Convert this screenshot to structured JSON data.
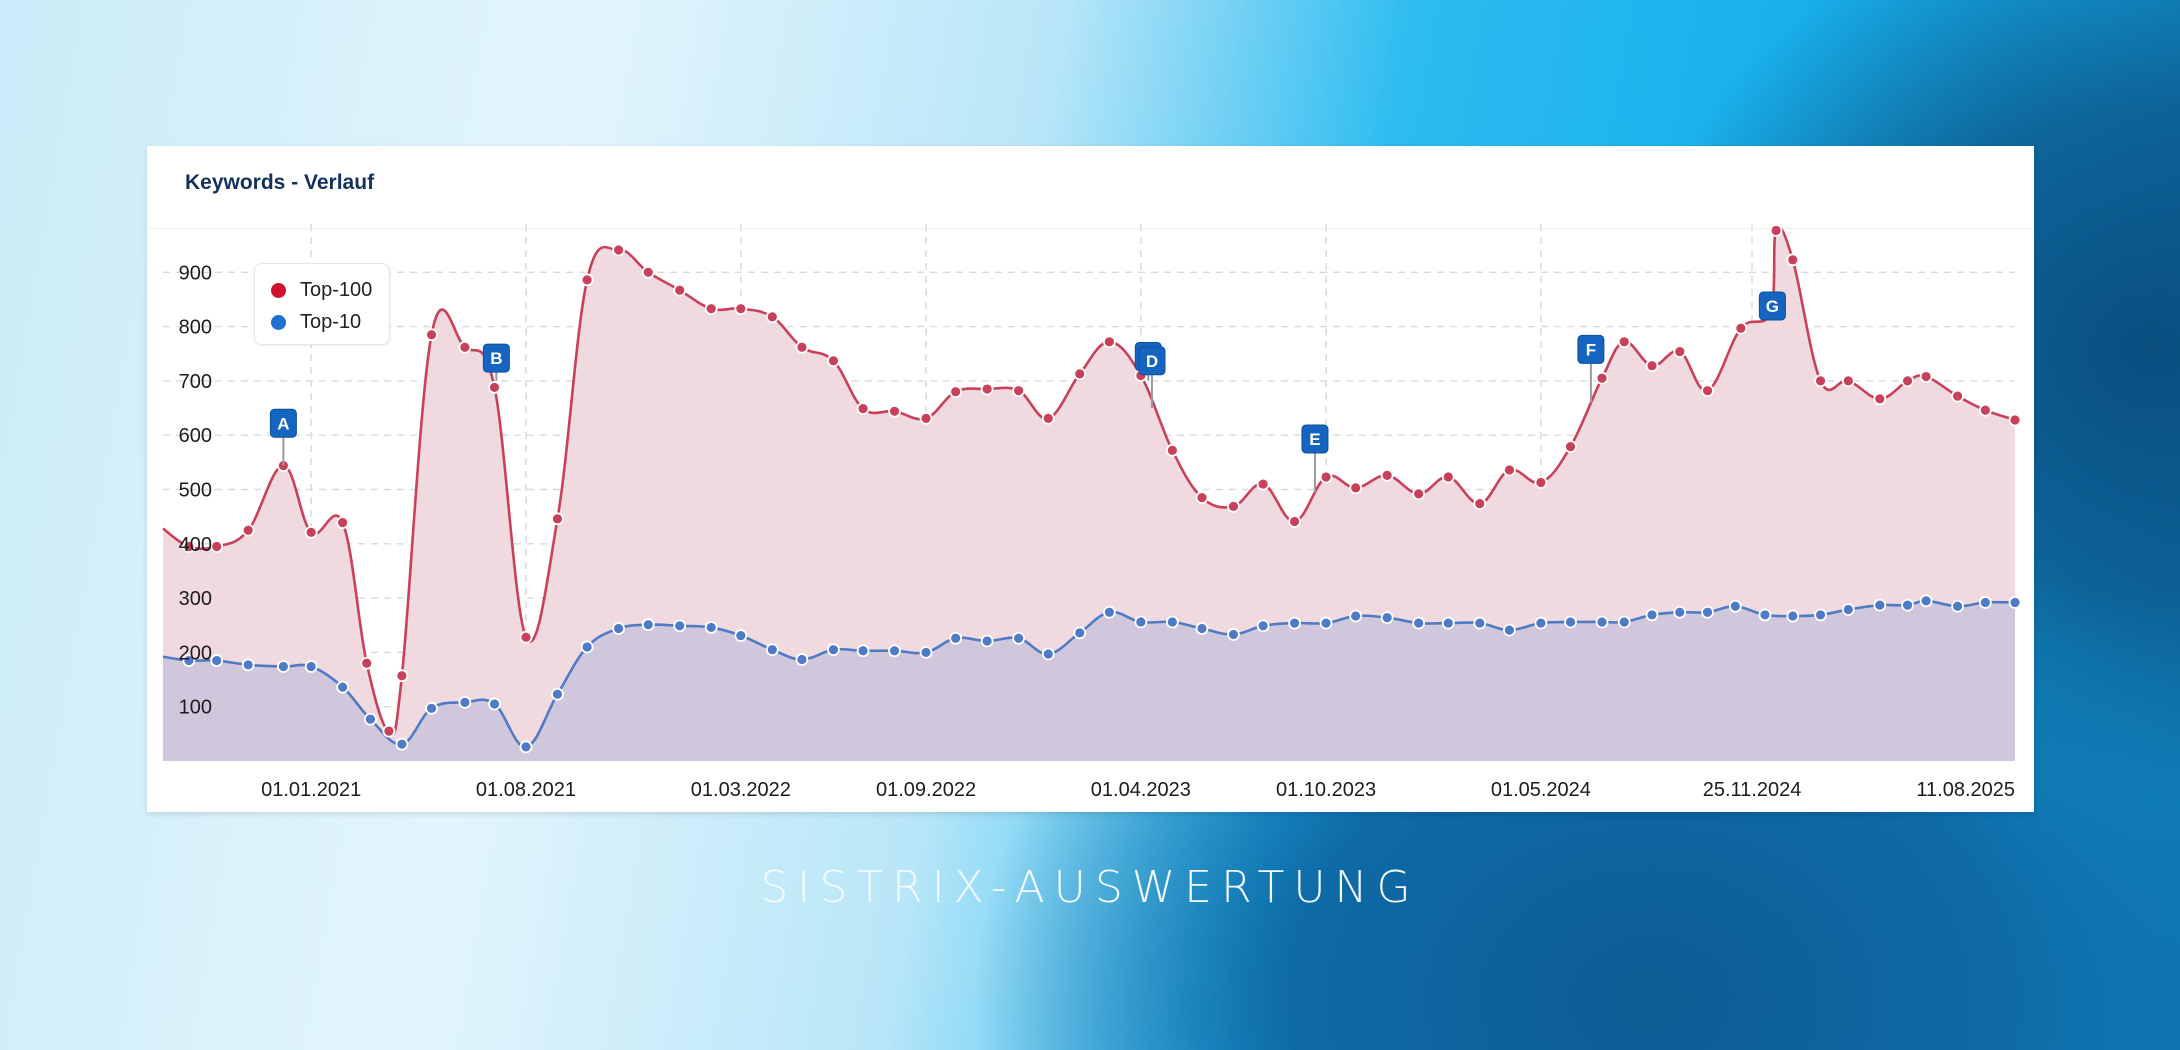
{
  "card": {
    "title": "Keywords - Verlauf"
  },
  "legend": {
    "items": [
      {
        "label": "Top-100",
        "color": "#d0102e"
      },
      {
        "label": "Top-10",
        "color": "#1f6fd1"
      }
    ]
  },
  "caption": "SISTRIX-AUSWERTUNG",
  "colors": {
    "top100_line": "#c9405a",
    "top100_fill": "#f0dadf",
    "top10_line": "#4f7bc6",
    "top10_fill": "#cfc6dc",
    "flag": "#1565c0",
    "grid": "#d9d9d9"
  },
  "chart_data": {
    "type": "area",
    "title": "Keywords - Verlauf",
    "xlabel": "",
    "ylabel": "",
    "ylim": [
      0,
      1000
    ],
    "grid": true,
    "legend_position": "top-left inside",
    "yticks": [
      100,
      200,
      300,
      400,
      500,
      600,
      700,
      800,
      900
    ],
    "xticks": [
      {
        "label": "01.01.2021",
        "pos": 0.08
      },
      {
        "label": "01.08.2021",
        "pos": 0.196
      },
      {
        "label": "01.03.2022",
        "pos": 0.312
      },
      {
        "label": "01.09.2022",
        "pos": 0.412
      },
      {
        "label": "01.04.2023",
        "pos": 0.528
      },
      {
        "label": "01.10.2023",
        "pos": 0.628
      },
      {
        "label": "01.05.2024",
        "pos": 0.744
      },
      {
        "label": "25.11.2024",
        "pos": 0.858
      },
      {
        "label": "11.08.2025",
        "pos": 1.0
      }
    ],
    "series": [
      {
        "name": "Top-100",
        "points": [
          [
            0.0,
            428
          ],
          [
            0.014,
            395
          ],
          [
            0.029,
            395
          ],
          [
            0.046,
            425
          ],
          [
            0.065,
            544
          ],
          [
            0.08,
            421
          ],
          [
            0.097,
            439
          ],
          [
            0.11,
            180
          ],
          [
            0.122,
            55
          ],
          [
            0.129,
            157
          ],
          [
            0.145,
            785
          ],
          [
            0.163,
            762
          ],
          [
            0.179,
            688
          ],
          [
            0.196,
            228
          ],
          [
            0.213,
            446
          ],
          [
            0.229,
            886
          ],
          [
            0.246,
            941
          ],
          [
            0.262,
            900
          ],
          [
            0.279,
            867
          ],
          [
            0.296,
            833
          ],
          [
            0.312,
            833
          ],
          [
            0.329,
            818
          ],
          [
            0.345,
            762
          ],
          [
            0.362,
            737
          ],
          [
            0.378,
            649
          ],
          [
            0.395,
            644
          ],
          [
            0.412,
            631
          ],
          [
            0.428,
            680
          ],
          [
            0.445,
            685
          ],
          [
            0.462,
            682
          ],
          [
            0.478,
            631
          ],
          [
            0.495,
            713
          ],
          [
            0.511,
            772
          ],
          [
            0.528,
            710
          ],
          [
            0.545,
            572
          ],
          [
            0.561,
            485
          ],
          [
            0.578,
            469
          ],
          [
            0.594,
            510
          ],
          [
            0.611,
            441
          ],
          [
            0.628,
            523
          ],
          [
            0.644,
            503
          ],
          [
            0.661,
            526
          ],
          [
            0.678,
            492
          ],
          [
            0.694,
            523
          ],
          [
            0.711,
            474
          ],
          [
            0.727,
            536
          ],
          [
            0.744,
            513
          ],
          [
            0.76,
            579
          ],
          [
            0.777,
            705
          ],
          [
            0.789,
            772
          ],
          [
            0.804,
            728
          ],
          [
            0.819,
            754
          ],
          [
            0.834,
            682
          ],
          [
            0.852,
            797
          ],
          [
            0.868,
            826
          ],
          [
            0.871,
            977
          ],
          [
            0.88,
            923
          ],
          [
            0.895,
            700
          ],
          [
            0.91,
            700
          ],
          [
            0.927,
            667
          ],
          [
            0.942,
            700
          ],
          [
            0.952,
            708
          ],
          [
            0.969,
            672
          ],
          [
            0.984,
            646
          ],
          [
            1.0,
            628
          ]
        ]
      },
      {
        "name": "Top-10",
        "points": [
          [
            0.0,
            192
          ],
          [
            0.014,
            185
          ],
          [
            0.029,
            185
          ],
          [
            0.046,
            177
          ],
          [
            0.065,
            174
          ],
          [
            0.08,
            174
          ],
          [
            0.097,
            136
          ],
          [
            0.112,
            77
          ],
          [
            0.129,
            31
          ],
          [
            0.145,
            97
          ],
          [
            0.163,
            108
          ],
          [
            0.179,
            105
          ],
          [
            0.196,
            26
          ],
          [
            0.213,
            123
          ],
          [
            0.229,
            210
          ],
          [
            0.246,
            244
          ],
          [
            0.262,
            251
          ],
          [
            0.279,
            249
          ],
          [
            0.296,
            246
          ],
          [
            0.312,
            231
          ],
          [
            0.329,
            205
          ],
          [
            0.345,
            187
          ],
          [
            0.362,
            205
          ],
          [
            0.378,
            203
          ],
          [
            0.395,
            203
          ],
          [
            0.412,
            200
          ],
          [
            0.428,
            226
          ],
          [
            0.445,
            221
          ],
          [
            0.462,
            226
          ],
          [
            0.478,
            197
          ],
          [
            0.495,
            236
          ],
          [
            0.511,
            274
          ],
          [
            0.528,
            256
          ],
          [
            0.545,
            256
          ],
          [
            0.561,
            244
          ],
          [
            0.578,
            233
          ],
          [
            0.594,
            249
          ],
          [
            0.611,
            254
          ],
          [
            0.628,
            254
          ],
          [
            0.644,
            267
          ],
          [
            0.661,
            264
          ],
          [
            0.678,
            254
          ],
          [
            0.694,
            254
          ],
          [
            0.711,
            254
          ],
          [
            0.727,
            241
          ],
          [
            0.744,
            254
          ],
          [
            0.76,
            256
          ],
          [
            0.777,
            256
          ],
          [
            0.789,
            256
          ],
          [
            0.804,
            269
          ],
          [
            0.819,
            274
          ],
          [
            0.834,
            274
          ],
          [
            0.849,
            285
          ],
          [
            0.865,
            269
          ],
          [
            0.88,
            267
          ],
          [
            0.895,
            269
          ],
          [
            0.91,
            279
          ],
          [
            0.927,
            287
          ],
          [
            0.942,
            287
          ],
          [
            0.952,
            295
          ],
          [
            0.969,
            285
          ],
          [
            0.984,
            292
          ],
          [
            1.0,
            292
          ]
        ]
      }
    ],
    "annotations": [
      {
        "label": "A",
        "pos": 0.065,
        "value": 544,
        "flag_value": 622
      },
      {
        "label": "B",
        "pos": 0.18,
        "value": 700,
        "flag_value": 742
      },
      {
        "label": "C",
        "pos": 0.532,
        "value": 700,
        "flag_value": 745,
        "stacked": true
      },
      {
        "label": "D",
        "pos": 0.534,
        "value": 650,
        "flag_value": 737
      },
      {
        "label": "E",
        "pos": 0.622,
        "value": 495,
        "flag_value": 593
      },
      {
        "label": "F",
        "pos": 0.771,
        "value": 660,
        "flag_value": 758
      },
      {
        "label": "G",
        "pos": 0.869,
        "value": 820,
        "flag_value": 838
      }
    ]
  }
}
